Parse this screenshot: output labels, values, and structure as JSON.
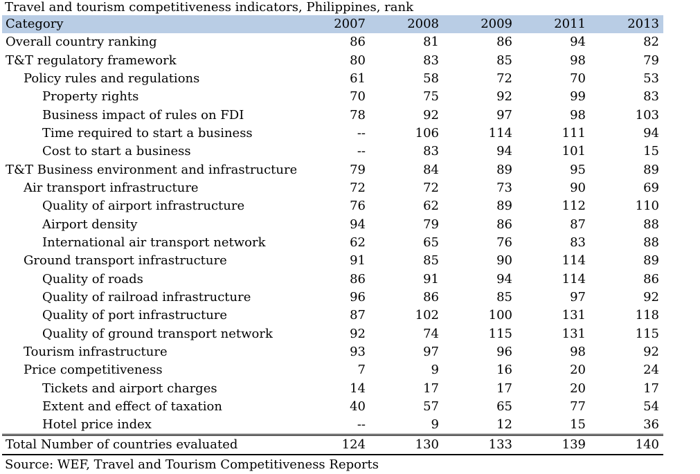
{
  "title": "Travel and tourism competitiveness indicators, Philippines, rank",
  "header": {
    "category": "Category",
    "years": [
      "2007",
      "2008",
      "2009",
      "2011",
      "2013"
    ]
  },
  "rows": [
    {
      "label": "Overall country ranking",
      "level": 0,
      "values": [
        "86",
        "81",
        "86",
        "94",
        "82"
      ]
    },
    {
      "label": "T&T regulatory framework",
      "level": 0,
      "values": [
        "80",
        "83",
        "85",
        "98",
        "79"
      ]
    },
    {
      "label": "Policy rules and regulations",
      "level": 1,
      "values": [
        "61",
        "58",
        "72",
        "70",
        "53"
      ]
    },
    {
      "label": "Property rights",
      "level": 2,
      "values": [
        "70",
        "75",
        "92",
        "99",
        "83"
      ]
    },
    {
      "label": "Business impact of rules on FDI",
      "level": 2,
      "values": [
        "78",
        "92",
        "97",
        "98",
        "103"
      ]
    },
    {
      "label": "Time required to start a business",
      "level": 2,
      "values": [
        "--",
        "106",
        "114",
        "111",
        "94"
      ]
    },
    {
      "label": "Cost to start a business",
      "level": 2,
      "values": [
        "--",
        "83",
        "94",
        "101",
        "15"
      ]
    },
    {
      "label": "T&T Business environment and infrastructure",
      "level": 0,
      "values": [
        "79",
        "84",
        "89",
        "95",
        "89"
      ]
    },
    {
      "label": "Air transport infrastructure",
      "level": 1,
      "values": [
        "72",
        "72",
        "73",
        "90",
        "69"
      ]
    },
    {
      "label": "Quality of airport infrastructure",
      "level": 2,
      "values": [
        "76",
        "62",
        "89",
        "112",
        "110"
      ]
    },
    {
      "label": "Airport density",
      "level": 2,
      "values": [
        "94",
        "79",
        "86",
        "87",
        "88"
      ]
    },
    {
      "label": "International air transport network",
      "level": 2,
      "values": [
        "62",
        "65",
        "76",
        "83",
        "88"
      ]
    },
    {
      "label": "Ground transport infrastructure",
      "level": 1,
      "values": [
        "91",
        "85",
        "90",
        "114",
        "89"
      ]
    },
    {
      "label": "Quality of roads",
      "level": 2,
      "values": [
        "86",
        "91",
        "94",
        "114",
        "86"
      ]
    },
    {
      "label": "Quality of railroad infrastructure",
      "level": 2,
      "values": [
        "96",
        "86",
        "85",
        "97",
        "92"
      ]
    },
    {
      "label": "Quality of port infrastructure",
      "level": 2,
      "values": [
        "87",
        "102",
        "100",
        "131",
        "118"
      ]
    },
    {
      "label": "Quality of ground transport network",
      "level": 2,
      "values": [
        "92",
        "74",
        "115",
        "131",
        "115"
      ]
    },
    {
      "label": "Tourism infrastructure",
      "level": 1,
      "values": [
        "93",
        "97",
        "96",
        "98",
        "92"
      ]
    },
    {
      "label": "Price competitiveness",
      "level": 1,
      "values": [
        "7",
        "9",
        "16",
        "20",
        "24"
      ]
    },
    {
      "label": "Tickets and airport charges",
      "level": 2,
      "values": [
        "14",
        "17",
        "17",
        "20",
        "17"
      ]
    },
    {
      "label": "Extent and effect of taxation",
      "level": 2,
      "values": [
        "40",
        "57",
        "65",
        "77",
        "54"
      ]
    },
    {
      "label": "Hotel price index",
      "level": 2,
      "values": [
        "--",
        "9",
        "12",
        "15",
        "36"
      ]
    }
  ],
  "total": {
    "label": "Total Number of countries evaluated",
    "values": [
      "124",
      "130",
      "133",
      "139",
      "140"
    ]
  },
  "source": "Source: WEF, Travel and Tourism Competitiveness Reports",
  "colors": {
    "header_bg": "#b9cde5"
  }
}
